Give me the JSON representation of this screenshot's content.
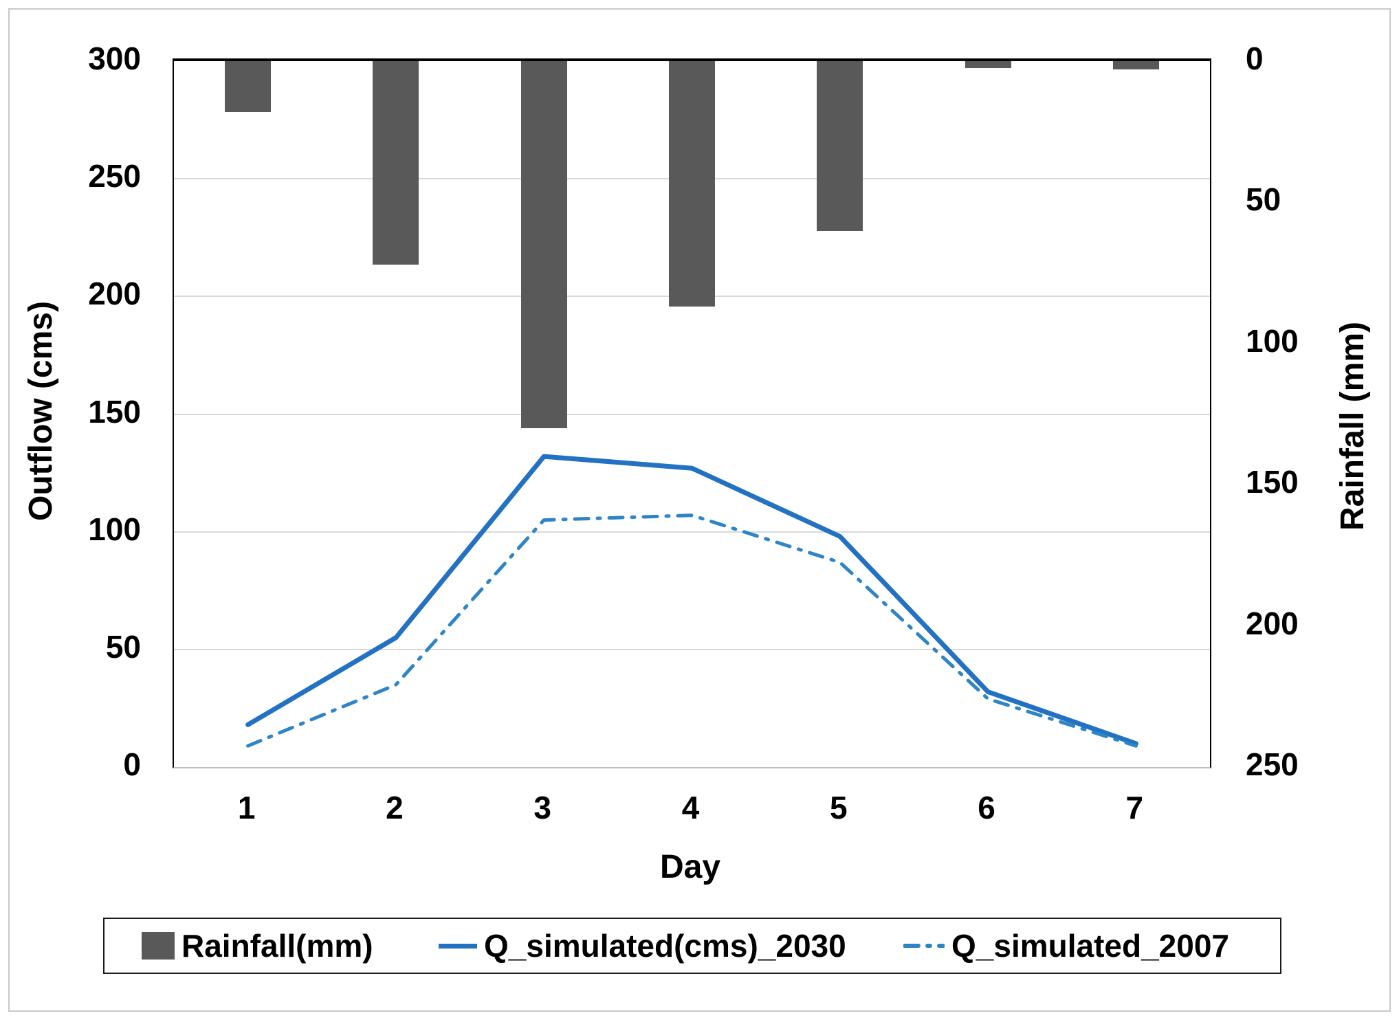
{
  "chart_data": {
    "type": "combo-bar-line",
    "x": [
      1,
      2,
      3,
      4,
      5,
      6,
      7
    ],
    "xlabel": "Day",
    "left_axis": {
      "label": "Outflow (cms)",
      "min": 0,
      "max": 300,
      "ticks": [
        0,
        50,
        100,
        150,
        200,
        250,
        300
      ]
    },
    "right_axis": {
      "label": "Rainfall (mm)",
      "min": 0,
      "max": 250,
      "ticks": [
        0,
        50,
        100,
        150,
        200,
        250
      ],
      "inverted": true
    },
    "gridlines": "horizontal-every-50-left-units",
    "legend_position": "bottom",
    "series": [
      {
        "name": "Rainfall(mm)",
        "type": "bar",
        "axis": "right",
        "color": "#595959",
        "values": [
          18,
          72,
          130,
          87,
          60,
          2.5,
          3
        ]
      },
      {
        "name": "Q_simulated(cms)_2030",
        "type": "line",
        "style": "solid",
        "axis": "left",
        "color": "#2271C3",
        "values": [
          18,
          55,
          132,
          127,
          98,
          32,
          10
        ]
      },
      {
        "name": "Q_simulated_2007",
        "type": "line",
        "style": "dash-dot",
        "axis": "left",
        "color": "#2E85C6",
        "values": [
          9,
          35,
          105,
          107,
          87,
          29,
          9
        ]
      }
    ]
  }
}
